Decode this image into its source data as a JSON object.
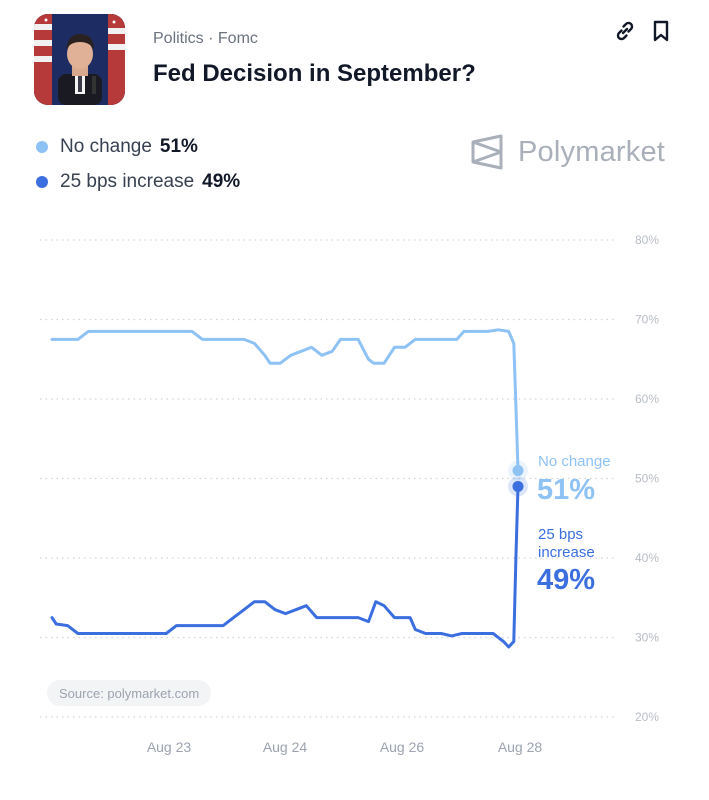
{
  "header": {
    "category": "Politics · Fomc",
    "title": "Fed Decision in September?",
    "brand": "Polymarket"
  },
  "legend": [
    {
      "label": "No change",
      "value": "51%",
      "color": "#8ec2f5"
    },
    {
      "label": "25 bps increase",
      "value": "49%",
      "color": "#3b6fe0"
    }
  ],
  "source": "Source: polymarket.com",
  "end_labels": {
    "no_change": {
      "label": "No change",
      "value": "51%"
    },
    "increase": {
      "label_line1": "25 bps",
      "label_line2": "increase",
      "value": "49%"
    }
  },
  "chart_data": {
    "type": "line",
    "title": "Fed Decision in September?",
    "xlabel": "",
    "ylabel": "",
    "ylim": [
      20,
      80
    ],
    "yticks": [
      "20%",
      "30%",
      "40%",
      "50%",
      "60%",
      "70%",
      "80%"
    ],
    "xticks": [
      {
        "label": "Aug 23",
        "t": 1
      },
      {
        "label": "Aug 24",
        "t": 2
      },
      {
        "label": "Aug 26",
        "t": 3
      },
      {
        "label": "Aug 28",
        "t": 4
      }
    ],
    "grid": true,
    "legend_position": "top-left",
    "series": [
      {
        "name": "No change",
        "color": "#8ec2f5",
        "points": [
          [
            0.0,
            67.5
          ],
          [
            0.25,
            67.5
          ],
          [
            0.35,
            68.5
          ],
          [
            1.0,
            68.5
          ],
          [
            1.35,
            68.5
          ],
          [
            1.45,
            67.5
          ],
          [
            1.85,
            67.5
          ],
          [
            1.95,
            67
          ],
          [
            2.05,
            65.5
          ],
          [
            2.1,
            64.5
          ],
          [
            2.2,
            64.5
          ],
          [
            2.3,
            65.5
          ],
          [
            2.4,
            66
          ],
          [
            2.5,
            66.5
          ],
          [
            2.6,
            65.5
          ],
          [
            2.7,
            66
          ],
          [
            2.78,
            67.5
          ],
          [
            2.95,
            67.5
          ],
          [
            3.05,
            65
          ],
          [
            3.1,
            64.5
          ],
          [
            3.2,
            64.5
          ],
          [
            3.3,
            66.5
          ],
          [
            3.4,
            66.5
          ],
          [
            3.5,
            67.5
          ],
          [
            3.9,
            67.5
          ],
          [
            3.97,
            68.5
          ],
          [
            4.2,
            68.5
          ],
          [
            4.3,
            68.7
          ],
          [
            4.4,
            68.5
          ],
          [
            4.45,
            67
          ],
          [
            4.48,
            55
          ],
          [
            4.49,
            51
          ]
        ]
      },
      {
        "name": "25 bps increase",
        "color": "#3b6fe0",
        "points": [
          [
            0.0,
            32.5
          ],
          [
            0.04,
            31.7
          ],
          [
            0.15,
            31.5
          ],
          [
            0.25,
            30.5
          ],
          [
            0.6,
            30.5
          ],
          [
            1.0,
            30.5
          ],
          [
            1.1,
            30.5
          ],
          [
            1.2,
            31.5
          ],
          [
            1.4,
            31.5
          ],
          [
            1.65,
            31.5
          ],
          [
            1.75,
            32.5
          ],
          [
            1.85,
            33.5
          ],
          [
            1.95,
            34.5
          ],
          [
            2.05,
            34.5
          ],
          [
            2.15,
            33.5
          ],
          [
            2.25,
            33
          ],
          [
            2.35,
            33.5
          ],
          [
            2.45,
            34
          ],
          [
            2.55,
            32.5
          ],
          [
            2.7,
            32.5
          ],
          [
            2.95,
            32.5
          ],
          [
            3.05,
            32
          ],
          [
            3.12,
            34.5
          ],
          [
            3.2,
            34
          ],
          [
            3.3,
            32.5
          ],
          [
            3.45,
            32.5
          ],
          [
            3.5,
            31
          ],
          [
            3.6,
            30.5
          ],
          [
            3.75,
            30.5
          ],
          [
            3.85,
            30.2
          ],
          [
            3.95,
            30.5
          ],
          [
            4.1,
            30.5
          ],
          [
            4.25,
            30.5
          ],
          [
            4.35,
            29.5
          ],
          [
            4.4,
            28.8
          ],
          [
            4.45,
            29.5
          ],
          [
            4.47,
            40
          ],
          [
            4.49,
            49
          ]
        ]
      }
    ]
  },
  "colors": {
    "grid": "#d1d5db",
    "tick": "#b8bdc5",
    "accent_light": "#8ec2f5",
    "accent_dark": "#3b6fe0"
  },
  "icons": {
    "link": "link-icon",
    "bookmark": "bookmark-icon",
    "brand": "polymarket-logo-icon"
  }
}
